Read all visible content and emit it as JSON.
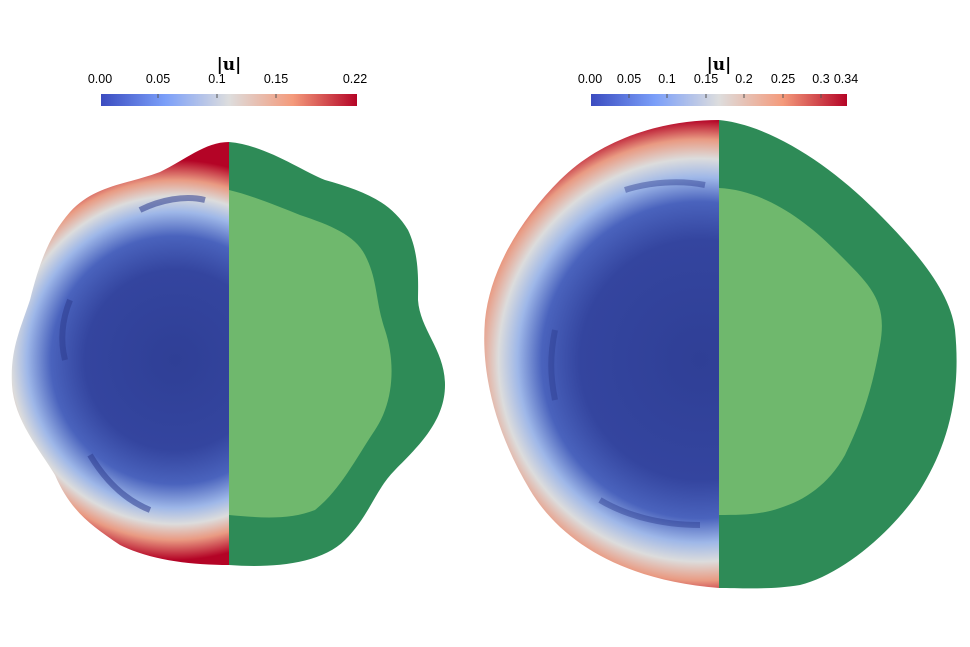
{
  "panels": [
    {
      "colorbar": {
        "title": "|u|",
        "ticks": [
          "0.00",
          "0.05",
          "0.1",
          "0.15",
          "0.22"
        ],
        "tick_values": [
          0.0,
          0.05,
          0.1,
          0.15,
          0.22
        ],
        "range": [
          0.0,
          0.22
        ]
      }
    },
    {
      "colorbar": {
        "title": "|u|",
        "ticks": [
          "0.00",
          "0.05",
          "0.1",
          "0.15",
          "0.2",
          "0.25",
          "0.3",
          "0.34"
        ],
        "tick_values": [
          0.0,
          0.05,
          0.1,
          0.15,
          0.2,
          0.25,
          0.3,
          0.34
        ],
        "range": [
          0.0,
          0.34
        ]
      }
    }
  ],
  "colors": {
    "colormap_low": "#3b4cc0",
    "colormap_mid": "#dddddd",
    "colormap_high": "#b40426",
    "outer_region": "#2e8b57",
    "inner_region": "#6fb86d",
    "background": "#ffffff"
  }
}
